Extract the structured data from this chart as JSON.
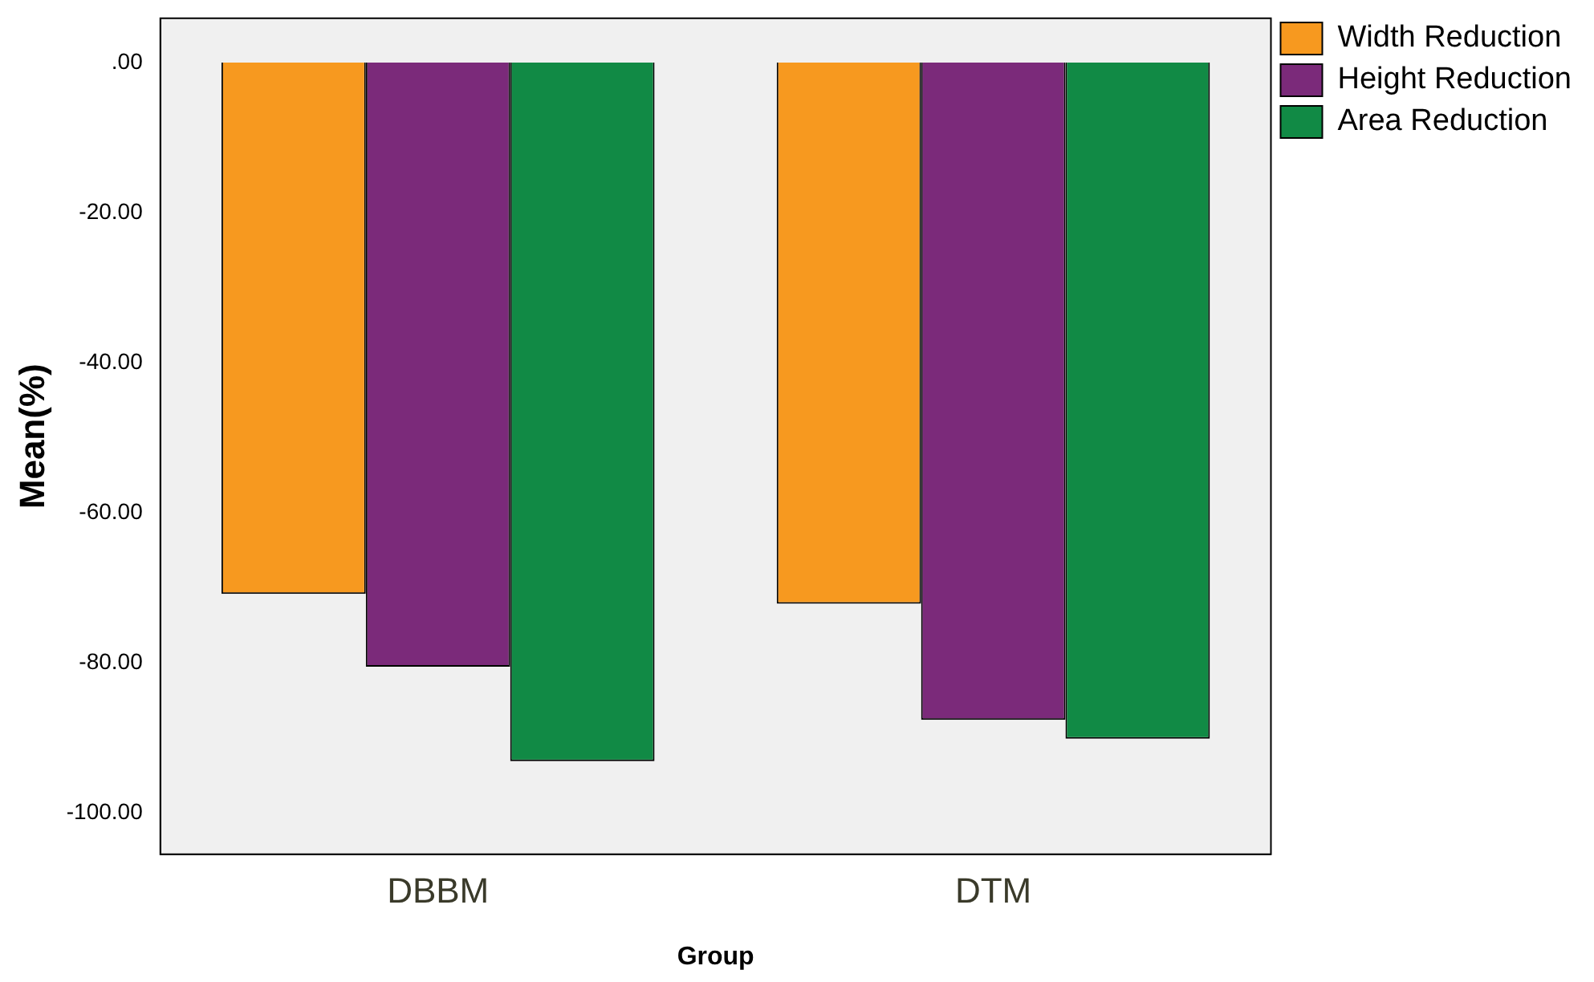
{
  "chart_data": {
    "type": "bar",
    "xlabel": "Group",
    "ylabel": "Mean(%)",
    "categories": [
      "DBBM",
      "DTM"
    ],
    "series": [
      {
        "name": "Width Reduction",
        "color": "#f7991f",
        "values": [
          -70.8,
          -72.1
        ]
      },
      {
        "name": "Height Reduction",
        "color": "#7b2a7a",
        "values": [
          -80.5,
          -87.6
        ]
      },
      {
        "name": "Area Reduction",
        "color": "#118a45",
        "values": [
          -93.1,
          -90.1
        ]
      }
    ],
    "ylim": [
      -105.5,
      5.9
    ],
    "yticks": [
      {
        "value": 0,
        "label": ".00"
      },
      {
        "value": -20,
        "label": "-20.00"
      },
      {
        "value": -40,
        "label": "-40.00"
      },
      {
        "value": -60,
        "label": "-60.00"
      },
      {
        "value": -80,
        "label": "-80.00"
      },
      {
        "value": -100,
        "label": "-100.00"
      }
    ],
    "grid": false,
    "legend": "top right"
  }
}
